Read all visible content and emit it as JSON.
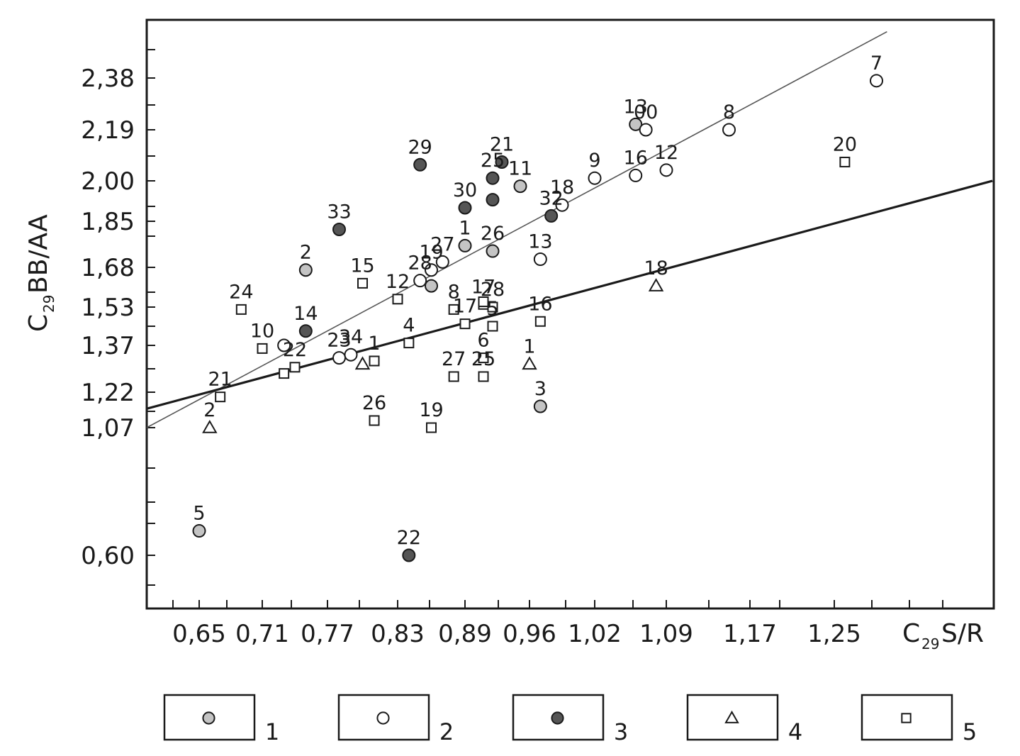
{
  "chart_data": {
    "type": "scatter",
    "xlabel": {
      "main": "C",
      "sub": "29",
      "rest": "S/R"
    },
    "ylabel": {
      "main": "C",
      "sub": "29",
      "rest": "BB/AA"
    },
    "x_tick_labels": [
      "0,65",
      "0,71",
      "0,77",
      "0,83",
      "0,89",
      "0,96",
      "1,02",
      "1,09",
      "1,17",
      "1,25"
    ],
    "y_tick_labels": [
      "0,60",
      "1,07",
      "1,22",
      "1,37",
      "1,53",
      "1,68",
      "1,85",
      "2,00",
      "2,19",
      "2,38"
    ],
    "grid": false,
    "legend": {
      "position": "bottom",
      "entries": [
        "1",
        "2",
        "3",
        "4",
        "5"
      ]
    },
    "colors": {
      "type1": "#c4c4c4",
      "type2": "#ffffff",
      "type3": "#555555",
      "stroke": "#1a1a1a"
    },
    "series": [
      {
        "name": "1",
        "marker": "circle-gray",
        "points": [
          {
            "label": "13",
            "x": 1.06,
            "y": 2.21
          },
          {
            "label": "11",
            "x": 0.95,
            "y": 1.98
          },
          {
            "label": "1",
            "x": 0.89,
            "y": 1.76
          },
          {
            "label": "26",
            "x": 0.92,
            "y": 1.74
          },
          {
            "label": "2",
            "x": 0.75,
            "y": 1.67
          },
          {
            "label": "",
            "x": 0.86,
            "y": 1.61
          },
          {
            "label": "3",
            "x": 0.97,
            "y": 1.16
          },
          {
            "label": "5",
            "x": 0.65,
            "y": 0.69
          }
        ]
      },
      {
        "name": "2",
        "marker": "circle-white",
        "points": [
          {
            "label": "7",
            "x": 1.29,
            "y": 2.37
          },
          {
            "label": "00",
            "x": 1.07,
            "y": 2.19
          },
          {
            "label": "8",
            "x": 1.15,
            "y": 2.19
          },
          {
            "label": "16",
            "x": 1.06,
            "y": 2.02
          },
          {
            "label": "12",
            "x": 1.09,
            "y": 2.04
          },
          {
            "label": "9",
            "x": 1.02,
            "y": 2.01
          },
          {
            "label": "18",
            "x": 0.99,
            "y": 1.91
          },
          {
            "label": "13",
            "x": 0.97,
            "y": 1.71
          },
          {
            "label": "27",
            "x": 0.87,
            "y": 1.7
          },
          {
            "label": "19",
            "x": 0.86,
            "y": 1.67
          },
          {
            "label": "28",
            "x": 0.85,
            "y": 1.63
          },
          {
            "label": "",
            "x": 0.73,
            "y": 1.37
          },
          {
            "label": "23",
            "x": 0.78,
            "y": 1.33
          },
          {
            "label": "34",
            "x": 0.79,
            "y": 1.34
          }
        ]
      },
      {
        "name": "3",
        "marker": "circle-dark",
        "points": [
          {
            "label": "29",
            "x": 0.85,
            "y": 2.06
          },
          {
            "label": "21",
            "x": 0.93,
            "y": 2.07
          },
          {
            "label": "25",
            "x": 0.92,
            "y": 2.01
          },
          {
            "label": "",
            "x": 0.92,
            "y": 1.93
          },
          {
            "label": "30",
            "x": 0.89,
            "y": 1.9
          },
          {
            "label": "32",
            "x": 0.98,
            "y": 1.87
          },
          {
            "label": "33",
            "x": 0.78,
            "y": 1.82
          },
          {
            "label": "14",
            "x": 0.75,
            "y": 1.43
          },
          {
            "label": "22",
            "x": 0.84,
            "y": 0.6
          }
        ]
      },
      {
        "name": "4",
        "marker": "triangle",
        "points": [
          {
            "label": "18",
            "x": 1.08,
            "y": 1.61
          },
          {
            "label": "",
            "x": 0.8,
            "y": 1.31
          },
          {
            "label": "1",
            "x": 0.96,
            "y": 1.31
          },
          {
            "label": "2",
            "x": 0.66,
            "y": 1.07
          }
        ]
      },
      {
        "name": "5",
        "marker": "square",
        "points": [
          {
            "label": "20",
            "x": 1.26,
            "y": 2.07
          },
          {
            "label": "15",
            "x": 0.8,
            "y": 1.62
          },
          {
            "label": "12",
            "x": 0.83,
            "y": 1.56
          },
          {
            "label": "24",
            "x": 0.69,
            "y": 1.52
          },
          {
            "label": "8",
            "x": 0.88,
            "y": 1.52
          },
          {
            "label": "17",
            "x": 0.91,
            "y": 1.54
          },
          {
            "label": "28",
            "x": 0.92,
            "y": 1.53
          },
          {
            "label": "",
            "x": 0.91,
            "y": 1.55
          },
          {
            "label": "16",
            "x": 0.97,
            "y": 1.47
          },
          {
            "label": "5",
            "x": 0.92,
            "y": 1.45
          },
          {
            "label": "17",
            "x": 0.89,
            "y": 1.46
          },
          {
            "label": "4",
            "x": 0.84,
            "y": 1.38
          },
          {
            "label": "10",
            "x": 0.71,
            "y": 1.36
          },
          {
            "label": "6",
            "x": 0.91,
            "y": 1.33
          },
          {
            "label": "1",
            "x": 0.81,
            "y": 1.32
          },
          {
            "label": "22",
            "x": 0.74,
            "y": 1.3
          },
          {
            "label": "",
            "x": 0.73,
            "y": 1.28
          },
          {
            "label": "27",
            "x": 0.88,
            "y": 1.27
          },
          {
            "label": "25",
            "x": 0.91,
            "y": 1.27
          },
          {
            "label": "21",
            "x": 0.67,
            "y": 1.2
          },
          {
            "label": "26",
            "x": 0.81,
            "y": 1.1
          },
          {
            "label": "19",
            "x": 0.86,
            "y": 1.07
          }
        ]
      }
    ],
    "trendlines": [
      {
        "name": "thin",
        "x": [
          0.6,
          1.3
        ],
        "y": [
          1.07,
          2.55
        ]
      },
      {
        "name": "bold",
        "x": [
          0.6,
          1.4
        ],
        "y": [
          1.15,
          2.0
        ]
      }
    ]
  }
}
